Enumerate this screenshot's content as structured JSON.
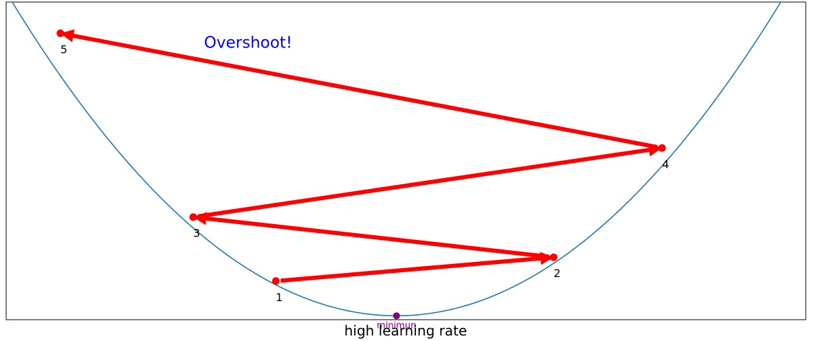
{
  "chart_data": {
    "type": "line",
    "title": "",
    "xlabel": "high learning rate",
    "ylabel": "",
    "xlim": [
      -2.88,
      3.02
    ],
    "ylim": [
      -0.1,
      8.04
    ],
    "grid": false,
    "curve": {
      "function": "y = x^2",
      "color": "#1f77b4"
    },
    "minimum": {
      "x": 0,
      "y": 0,
      "label": "minimun",
      "color": "#800080"
    },
    "steps": [
      {
        "label": "1",
        "x": -0.89,
        "y": 0.89
      },
      {
        "label": "2",
        "x": 1.16,
        "y": 1.5
      },
      {
        "label": "3",
        "x": -1.5,
        "y": 2.53
      },
      {
        "label": "4",
        "x": 1.96,
        "y": 4.3
      },
      {
        "label": "5",
        "x": -2.48,
        "y": 7.24
      }
    ],
    "step_color": "#ff0000",
    "annotation": {
      "text": "Overshoot!",
      "x": -1.42,
      "y": 6.87,
      "color": "#0000ff"
    }
  }
}
